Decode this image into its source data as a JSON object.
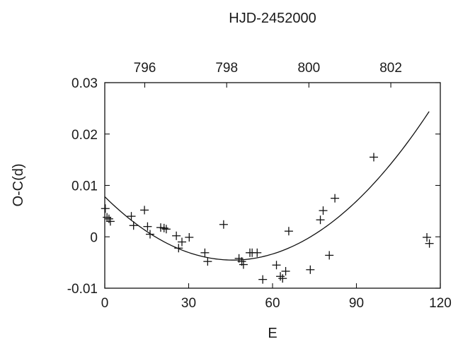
{
  "chart_data": {
    "type": "scatter",
    "title": "",
    "xlabel": "E",
    "ylabel": "O-C(d)",
    "top_xlabel": "HJD-2452000",
    "xlim": [
      0,
      120
    ],
    "ylim": [
      -0.01,
      0.03
    ],
    "x_ticks": [
      0,
      30,
      60,
      90,
      120
    ],
    "x_tick_labels": [
      "0",
      "30",
      "60",
      "90",
      "120"
    ],
    "y_ticks": [
      -0.01,
      0,
      0.01,
      0.02,
      0.03
    ],
    "y_tick_labels": [
      "-0.01",
      "0",
      "0.01",
      "0.02",
      "0.03"
    ],
    "top_ticks": [
      {
        "label": "796",
        "e": 14.3
      },
      {
        "label": "798",
        "e": 43.6
      },
      {
        "label": "800",
        "e": 73.0
      },
      {
        "label": "802",
        "e": 102.3
      }
    ],
    "grid": false,
    "series": [
      {
        "marker": "plus",
        "x": [
          0.2,
          0.8,
          1.5,
          2.0,
          9.5,
          10.3,
          14.2,
          15.3,
          16.2,
          20.0,
          21.2,
          22.0,
          25.6,
          26.4,
          27.6,
          30.2,
          35.8,
          36.8,
          42.5,
          48.0,
          49.0,
          49.6,
          51.9,
          52.7,
          54.5,
          56.5,
          61.4,
          62.8,
          63.6,
          64.7,
          65.8,
          73.5,
          77.1,
          78.1,
          80.3,
          82.3,
          96.2,
          115.2,
          116.1
        ],
        "y": [
          0.0055,
          0.0038,
          0.0035,
          0.003,
          0.004,
          0.0022,
          0.0052,
          0.002,
          0.0005,
          0.0018,
          0.0017,
          0.0015,
          0.0002,
          -0.0022,
          -0.001,
          -0.0001,
          -0.0031,
          -0.0048,
          0.0024,
          -0.0042,
          -0.0048,
          -0.0054,
          -0.0031,
          -0.0031,
          -0.0031,
          -0.0083,
          -0.0055,
          -0.0077,
          -0.0081,
          -0.0067,
          0.0011,
          -0.0064,
          0.0033,
          0.0051,
          -0.0036,
          0.0075,
          0.0155,
          -0.0001,
          -0.0013
        ]
      }
    ],
    "fit_curve": {
      "type": "quadratic",
      "a": 5.87e-06,
      "b": -0.000538,
      "c": 0.0078,
      "x_range": [
        0,
        116
      ]
    }
  }
}
